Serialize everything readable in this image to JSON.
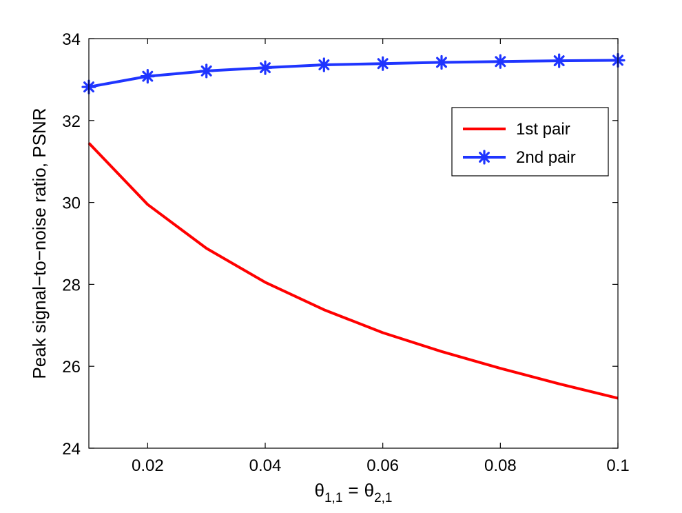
{
  "chart_data": {
    "type": "line",
    "title": "",
    "xlabel": "θ1,1 = θ2,1",
    "xlabel_parts": {
      "symbol1": "θ",
      "sub1": "1,1",
      "equals": "=",
      "symbol2": "θ",
      "sub2": "2,1"
    },
    "ylabel": "Peak signal−to−noise ratio, PSNR",
    "xlim": [
      0.01,
      0.1
    ],
    "ylim": [
      24,
      34
    ],
    "x": [
      0.01,
      0.02,
      0.03,
      0.04,
      0.05,
      0.06,
      0.07,
      0.08,
      0.09,
      0.1
    ],
    "xticks": [
      0.02,
      0.04,
      0.06,
      0.08,
      0.1
    ],
    "xtick_labels": [
      "0.02",
      "0.04",
      "0.06",
      "0.08",
      "0.1"
    ],
    "yticks": [
      24,
      26,
      28,
      30,
      32,
      34
    ],
    "ytick_labels": [
      "24",
      "26",
      "28",
      "30",
      "32",
      "34"
    ],
    "grid": false,
    "legend_position": "upper-right",
    "series": [
      {
        "name": "1st pair",
        "color": "#ff0000",
        "marker": "none",
        "values": [
          31.45,
          29.95,
          28.88,
          28.05,
          27.38,
          26.82,
          26.36,
          25.95,
          25.57,
          25.22
        ]
      },
      {
        "name": "2nd pair",
        "color": "#1f35ff",
        "marker": "asterisk",
        "values": [
          32.82,
          33.08,
          33.21,
          33.29,
          33.36,
          33.39,
          33.42,
          33.44,
          33.46,
          33.47
        ]
      }
    ]
  }
}
